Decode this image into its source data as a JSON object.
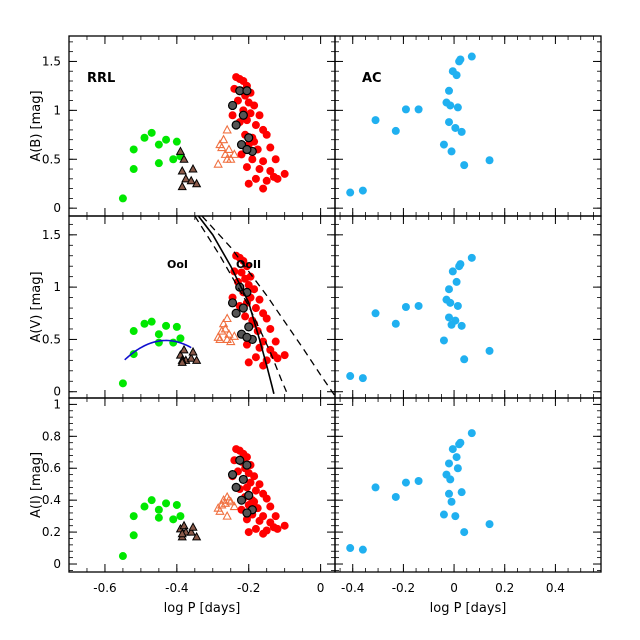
{
  "chart_data": {
    "type": "scatter",
    "title": "",
    "xlabel": "log P [days]",
    "colors": {
      "RRab": "#ff0000",
      "RRab_gray": "#555555",
      "RRc": "#00e800",
      "RRc_black": "#000000",
      "RRd": "#f07040",
      "AC": "#20b0f0",
      "blue_curve": "#1010d0",
      "black_curve": "#000000"
    },
    "columns": [
      {
        "name": "RRL",
        "label": "RRL",
        "xlim": [
          -0.7,
          0.04
        ],
        "xticks": [
          -0.6,
          -0.4,
          -0.2,
          0
        ],
        "xticklabels": [
          "-0.6",
          "-0.4",
          "-0.2",
          "0"
        ]
      },
      {
        "name": "AC",
        "label": "AC",
        "xlim": [
          -0.47,
          0.58
        ],
        "xticks": [
          -0.4,
          -0.2,
          0,
          0.2,
          0.4
        ],
        "xticklabels": [
          "-0.4",
          "-0.2",
          "0",
          "0.2",
          "0.4"
        ]
      }
    ],
    "rows": [
      {
        "band": "B",
        "ylabel": "A(B) [mag]",
        "ylim": [
          -0.08,
          1.76
        ],
        "yticks": [
          0,
          0.5,
          1,
          1.5
        ],
        "yticklabels": [
          "0",
          "0.5",
          "1",
          "1.5"
        ]
      },
      {
        "band": "V",
        "ylabel": "A(V) [mag]",
        "ylim": [
          -0.06,
          1.68
        ],
        "yticks": [
          0,
          0.5,
          1,
          1.5
        ],
        "yticklabels": [
          "0",
          "0.5",
          "1",
          "1.5"
        ]
      },
      {
        "band": "I",
        "ylabel": "A(I) [mag]",
        "ylim": [
          -0.05,
          1.04
        ],
        "yticks": [
          0,
          0.2,
          0.4,
          0.6,
          0.8,
          1
        ],
        "yticklabels": [
          "0",
          "0.2",
          "0.4",
          "0.6",
          "0.8",
          "1"
        ]
      }
    ],
    "series": {
      "RRab": [
        [
          -0.235,
          1.34,
          1.3,
          0.72
        ],
        [
          -0.225,
          1.32,
          1.28,
          0.71
        ],
        [
          -0.215,
          1.3,
          1.25,
          0.69
        ],
        [
          -0.205,
          1.25,
          1.2,
          0.67
        ],
        [
          -0.24,
          1.22,
          1.15,
          0.65
        ],
        [
          -0.22,
          1.2,
          1.14,
          0.64
        ],
        [
          -0.195,
          1.18,
          1.1,
          0.62
        ],
        [
          -0.21,
          1.15,
          1.08,
          0.6
        ],
        [
          -0.23,
          1.1,
          1.05,
          0.58
        ],
        [
          -0.2,
          1.08,
          1.02,
          0.57
        ],
        [
          -0.185,
          1.05,
          0.98,
          0.55
        ],
        [
          -0.215,
          1.0,
          0.95,
          0.53
        ],
        [
          -0.195,
          0.97,
          0.9,
          0.51
        ],
        [
          -0.17,
          0.95,
          0.88,
          0.5
        ],
        [
          -0.205,
          0.9,
          0.85,
          0.48
        ],
        [
          -0.18,
          0.85,
          0.8,
          0.46
        ],
        [
          -0.225,
          0.88,
          0.82,
          0.47
        ],
        [
          -0.16,
          0.8,
          0.75,
          0.44
        ],
        [
          -0.21,
          0.75,
          0.72,
          0.42
        ],
        [
          -0.19,
          0.72,
          0.68,
          0.4
        ],
        [
          -0.15,
          0.75,
          0.7,
          0.41
        ],
        [
          -0.2,
          0.65,
          0.62,
          0.37
        ],
        [
          -0.175,
          0.6,
          0.58,
          0.35
        ],
        [
          -0.14,
          0.62,
          0.6,
          0.36
        ],
        [
          -0.22,
          0.55,
          0.55,
          0.34
        ],
        [
          -0.19,
          0.5,
          0.5,
          0.31
        ],
        [
          -0.16,
          0.48,
          0.48,
          0.3
        ],
        [
          -0.125,
          0.5,
          0.48,
          0.3
        ],
        [
          -0.205,
          0.42,
          0.45,
          0.28
        ],
        [
          -0.17,
          0.4,
          0.42,
          0.27
        ],
        [
          -0.14,
          0.38,
          0.4,
          0.26
        ],
        [
          -0.1,
          0.35,
          0.35,
          0.24
        ],
        [
          -0.18,
          0.3,
          0.33,
          0.22
        ],
        [
          -0.15,
          0.28,
          0.3,
          0.21
        ],
        [
          -0.12,
          0.3,
          0.32,
          0.22
        ],
        [
          -0.2,
          0.25,
          0.28,
          0.2
        ],
        [
          -0.16,
          0.2,
          0.25,
          0.19
        ],
        [
          -0.13,
          0.32,
          0.35,
          0.23
        ],
        [
          -0.245,
          0.95,
          0.9,
          0.55
        ],
        [
          -0.185,
          0.68,
          0.65,
          0.39
        ]
      ],
      "RRab_gray": [
        [
          -0.225,
          1.2,
          1.0,
          0.65
        ],
        [
          -0.205,
          1.2,
          0.95,
          0.62
        ],
        [
          -0.245,
          1.05,
          0.85,
          0.56
        ],
        [
          -0.215,
          0.95,
          0.8,
          0.53
        ],
        [
          -0.235,
          0.85,
          0.75,
          0.48
        ],
        [
          -0.2,
          0.72,
          0.62,
          0.43
        ],
        [
          -0.22,
          0.65,
          0.55,
          0.4
        ],
        [
          -0.19,
          0.58,
          0.5,
          0.34
        ],
        [
          -0.205,
          0.6,
          0.52,
          0.32
        ]
      ],
      "RRc": [
        [
          -0.55,
          0.1,
          0.08,
          0.05
        ],
        [
          -0.52,
          0.4,
          0.36,
          0.18
        ],
        [
          -0.52,
          0.6,
          0.58,
          0.3
        ],
        [
          -0.49,
          0.72,
          0.65,
          0.36
        ],
        [
          -0.47,
          0.77,
          0.67,
          0.4
        ],
        [
          -0.45,
          0.65,
          0.55,
          0.34
        ],
        [
          -0.43,
          0.7,
          0.63,
          0.38
        ],
        [
          -0.41,
          0.5,
          0.47,
          0.28
        ],
        [
          -0.4,
          0.68,
          0.62,
          0.37
        ],
        [
          -0.39,
          0.53,
          0.51,
          0.3
        ],
        [
          -0.45,
          0.46,
          0.47,
          0.29
        ]
      ],
      "RRc_black": [
        [
          -0.39,
          0.58,
          0.35,
          0.22
        ],
        [
          -0.38,
          0.5,
          0.4,
          0.24
        ],
        [
          -0.375,
          0.3,
          0.3,
          0.2
        ],
        [
          -0.385,
          0.22,
          0.3,
          0.17
        ],
        [
          -0.36,
          0.28,
          0.32,
          0.2
        ],
        [
          -0.355,
          0.4,
          0.38,
          0.23
        ],
        [
          -0.345,
          0.25,
          0.3,
          0.17
        ],
        [
          -0.385,
          0.38,
          0.28,
          0.19
        ]
      ],
      "RRd": [
        [
          -0.275,
          0.62,
          0.58,
          0.37
        ],
        [
          -0.265,
          0.55,
          0.6,
          0.38
        ],
        [
          -0.27,
          0.7,
          0.65,
          0.4
        ],
        [
          -0.255,
          0.6,
          0.55,
          0.4
        ],
        [
          -0.26,
          0.8,
          0.7,
          0.42
        ],
        [
          -0.285,
          0.45,
          0.52,
          0.35
        ],
        [
          -0.25,
          0.5,
          0.48,
          0.39
        ],
        [
          -0.28,
          0.65,
          0.5,
          0.33
        ],
        [
          -0.24,
          0.55,
          0.53,
          0.36
        ],
        [
          -0.26,
          0.5,
          0.5,
          0.3
        ]
      ],
      "AC": [
        [
          -0.41,
          0.16,
          0.15,
          0.1
        ],
        [
          -0.36,
          0.18,
          0.13,
          0.09
        ],
        [
          -0.31,
          0.9,
          0.75,
          0.48
        ],
        [
          -0.23,
          0.79,
          0.65,
          0.42
        ],
        [
          -0.19,
          1.01,
          0.81,
          0.51
        ],
        [
          -0.14,
          1.01,
          0.82,
          0.52
        ],
        [
          -0.04,
          0.65,
          0.49,
          0.31
        ],
        [
          -0.03,
          1.08,
          0.88,
          0.56
        ],
        [
          -0.02,
          0.88,
          0.71,
          0.44
        ],
        [
          -0.015,
          1.05,
          0.85,
          0.53
        ],
        [
          -0.01,
          0.58,
          0.64,
          0.39
        ],
        [
          -0.005,
          1.4,
          1.15,
          0.72
        ],
        [
          0.005,
          0.82,
          0.68,
          0.3
        ],
        [
          0.01,
          1.36,
          1.05,
          0.67
        ],
        [
          0.015,
          1.03,
          0.82,
          0.6
        ],
        [
          0.02,
          1.5,
          1.2,
          0.75
        ],
        [
          0.025,
          1.52,
          1.22,
          0.76
        ],
        [
          0.04,
          0.44,
          0.31,
          0.2
        ],
        [
          0.07,
          1.55,
          1.28,
          0.82
        ],
        [
          0.14,
          0.49,
          0.39,
          0.25
        ],
        [
          0.03,
          0.78,
          0.63,
          0.45
        ],
        [
          -0.02,
          1.2,
          0.98,
          0.63
        ]
      ]
    },
    "curves_V": [
      {
        "name": "blue_fit",
        "type": "parabola",
        "coeffs": {
          "a": -14,
          "h": -0.43,
          "k": 0.49
        },
        "xrange": [
          -0.545,
          -0.36
        ]
      },
      {
        "name": "OoI",
        "label": "OoI",
        "style": "dashed",
        "points": [
          [
            -0.35,
            1.68
          ],
          [
            -0.28,
            1.3
          ],
          [
            -0.2,
            0.82
          ],
          [
            -0.14,
            0.38
          ],
          [
            -0.11,
            0.12
          ],
          [
            -0.095,
            0
          ]
        ]
      },
      {
        "name": "OoII",
        "label": "OoII",
        "style": "dashed",
        "points": [
          [
            -0.33,
            1.68
          ],
          [
            -0.25,
            1.38
          ],
          [
            -0.15,
            0.92
          ],
          [
            -0.05,
            0.42
          ],
          [
            0.0,
            0.16
          ],
          [
            0.04,
            -0.04
          ]
        ]
      },
      {
        "name": "mean_relation",
        "style": "solid",
        "points": [
          [
            -0.34,
            1.68
          ],
          [
            -0.3,
            1.5
          ],
          [
            -0.25,
            1.2
          ],
          [
            -0.2,
            0.85
          ],
          [
            -0.17,
            0.5
          ],
          [
            -0.15,
            0.25
          ],
          [
            -0.135,
            0.05
          ],
          [
            -0.13,
            -0.02
          ]
        ]
      }
    ]
  }
}
